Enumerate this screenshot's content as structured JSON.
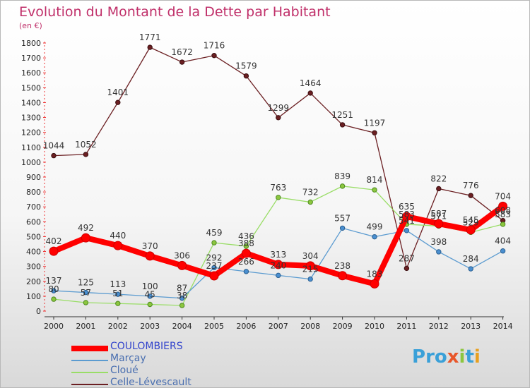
{
  "header": {
    "title": "Evolution du Montant de la Dette par Habitant",
    "unit": "(en €)"
  },
  "brand": {
    "name": "Proxiti",
    "letters": [
      "P",
      "r",
      "o",
      "x",
      "i",
      "t",
      "i"
    ],
    "letter_colors": [
      "#3aa0d8",
      "#3aa0d8",
      "#3aa0d8",
      "#e8562a",
      "#8cc63f",
      "#3aa0d8",
      "#e8a020"
    ]
  },
  "chart_data": {
    "type": "line",
    "title": "Evolution du Montant de la Dette par Habitant",
    "ylabel": "(en €)",
    "xlabel": "",
    "categories": [
      "2000",
      "2001",
      "2002",
      "2003",
      "2004",
      "2005",
      "2006",
      "2007",
      "2008",
      "2009",
      "2010",
      "2011",
      "2012",
      "2013",
      "2014"
    ],
    "ylim": [
      0,
      1800
    ],
    "yticks": [
      0,
      100,
      200,
      300,
      400,
      500,
      600,
      700,
      800,
      900,
      1000,
      1100,
      1200,
      1300,
      1400,
      1500,
      1600,
      1700,
      1800
    ],
    "grid": false,
    "legend_position": "bottom-left",
    "series": [
      {
        "name": "Celle-Lévescault",
        "color": "#6b1f22",
        "values": [
          1044,
          1052,
          1401,
          1771,
          1672,
          1716,
          1579,
          1299,
          1464,
          1251,
          1197,
          287,
          822,
          776,
          608
        ]
      },
      {
        "name": "Cloué",
        "color": "#99dd66",
        "values": [
          80,
          57,
          51,
          45,
          38,
          459,
          436,
          763,
          732,
          839,
          814,
          583,
          571,
          529,
          583
        ]
      },
      {
        "name": "Marçay",
        "color": "#5b9bd0",
        "values": [
          137,
          125,
          113,
          100,
          87,
          292,
          266,
          240,
          215,
          557,
          499,
          541,
          398,
          284,
          404
        ]
      },
      {
        "name": "COULOMBIERS",
        "color": "#ff0000",
        "values": [
          402,
          492,
          440,
          370,
          306,
          237,
          388,
          313,
          304,
          238,
          183,
          635,
          587,
          545,
          704
        ]
      }
    ]
  }
}
